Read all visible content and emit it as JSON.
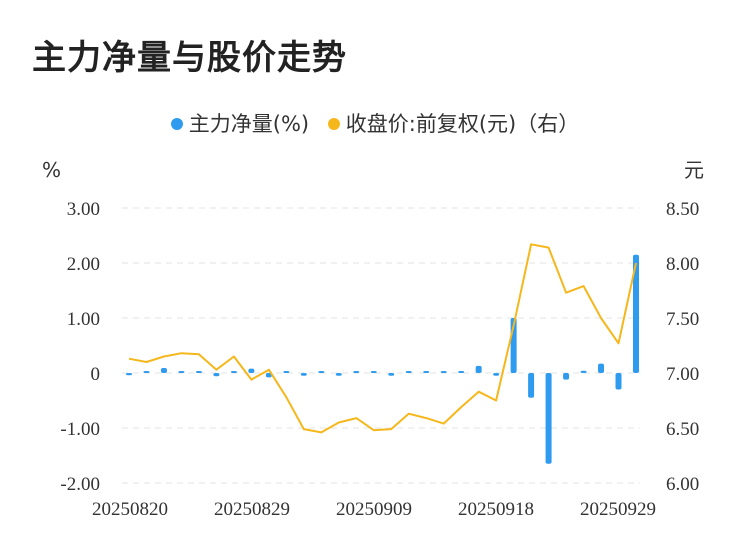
{
  "title": "主力净量与股价走势",
  "chart_data": {
    "type": "bar+line",
    "title": "主力净量与股价走势",
    "legend": [
      {
        "name": "主力净量(%)",
        "color": "#2e9bee"
      },
      {
        "name": "收盘价:前复权(元)（右）",
        "color": "#f5b71b"
      }
    ],
    "left_unit": "%",
    "right_unit": "元",
    "left_ticks": [
      "3.00",
      "2.00",
      "1.00",
      "0",
      "-1.00",
      "-2.00"
    ],
    "right_ticks": [
      "8.50",
      "8.00",
      "7.50",
      "7.00",
      "6.50",
      "6.00"
    ],
    "x_tick_labels": [
      "20250820",
      "20250829",
      "20250909",
      "20250918",
      "20250929"
    ],
    "ylim_left": [
      -2,
      3
    ],
    "ylim_right": [
      6,
      8.5
    ],
    "bars": [
      -0.04,
      0.03,
      0.09,
      0.02,
      0.02,
      -0.06,
      0.02,
      0.08,
      -0.08,
      0.02,
      -0.05,
      0.02,
      -0.05,
      0.02,
      0.02,
      -0.05,
      0.02,
      0.02,
      0.02,
      0.03,
      0.13,
      -0.05,
      1.0,
      -0.45,
      -1.65,
      -0.12,
      0.04,
      0.17,
      -0.3,
      2.15
    ],
    "close": [
      7.13,
      7.1,
      7.15,
      7.18,
      7.17,
      7.03,
      7.15,
      6.94,
      7.03,
      6.78,
      6.49,
      6.46,
      6.55,
      6.59,
      6.48,
      6.49,
      6.63,
      6.59,
      6.54,
      6.69,
      6.83,
      6.75,
      7.43,
      8.17,
      8.14,
      7.73,
      7.79,
      7.5,
      7.27,
      8.0
    ]
  }
}
